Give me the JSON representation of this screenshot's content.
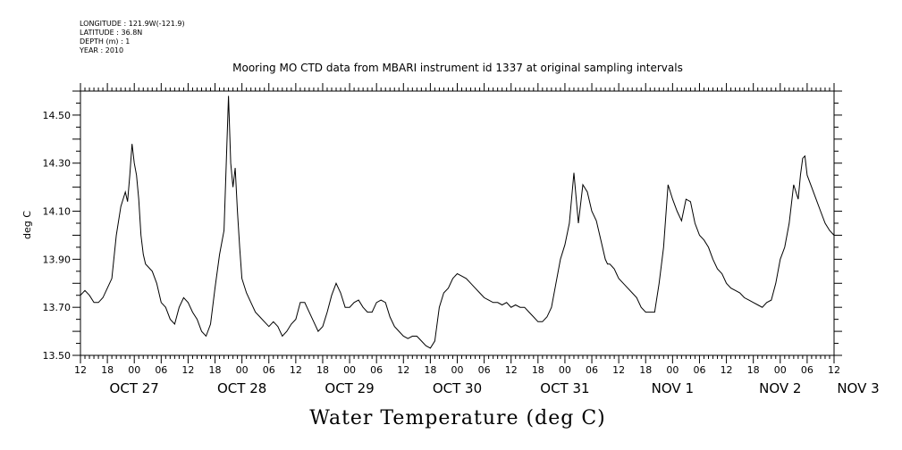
{
  "header": {
    "longitude": "LONGITUDE : 121.9W(-121.9)",
    "latitude": "LATITUDE : 36.8N",
    "depth": "DEPTH (m) : 1",
    "year": "YEAR : 2010"
  },
  "chart_data": {
    "type": "line",
    "title": "Mooring MO CTD data from MBARI instrument id 1337 at original sampling intervals",
    "xlabel": "Water Temperature (deg C)",
    "ylabel": "deg C",
    "ylim": [
      13.5,
      14.6
    ],
    "xlim_hours": [
      -12,
      156
    ],
    "y_ticks": [
      "13.50",
      "13.70",
      "13.90",
      "14.10",
      "14.30",
      "14.50"
    ],
    "y_tick_values": [
      13.5,
      13.7,
      13.9,
      14.1,
      14.3,
      14.5
    ],
    "hour_ticks": [
      "12",
      "18",
      "00",
      "06",
      "12",
      "18",
      "00",
      "06",
      "12",
      "18",
      "00",
      "06",
      "12",
      "18",
      "00",
      "06",
      "12",
      "18",
      "00",
      "06",
      "12",
      "18",
      "00",
      "06",
      "12",
      "18",
      "00",
      "06",
      "12"
    ],
    "date_labels": [
      {
        "text": "OCT 27",
        "hour": 0
      },
      {
        "text": "OCT 28",
        "hour": 24
      },
      {
        "text": "OCT 29",
        "hour": 48
      },
      {
        "text": "OCT 30",
        "hour": 72
      },
      {
        "text": "OCT 31",
        "hour": 96
      },
      {
        "text": "NOV  1",
        "hour": 120
      },
      {
        "text": "NOV  2",
        "hour": 144
      },
      {
        "text": "NOV  3",
        "hour": 168
      }
    ],
    "grid": false,
    "series": [
      {
        "color": "#000000",
        "x": [
          -12,
          -11,
          -10,
          -9,
          -8,
          -7,
          -6,
          -5,
          -4,
          -3,
          -2,
          -1.5,
          -1,
          -0.5,
          0,
          0.5,
          1,
          1.5,
          2,
          2.5,
          3,
          3.5,
          4,
          5,
          6,
          7,
          8,
          9,
          10,
          11,
          12,
          13,
          14,
          15,
          16,
          17,
          18,
          19,
          20,
          20.5,
          21,
          21.5,
          22,
          22.5,
          23,
          23.5,
          24,
          25,
          26,
          27,
          28,
          29,
          30,
          31,
          32,
          33,
          34,
          35,
          36,
          37,
          38,
          39,
          40,
          41,
          42,
          43,
          44,
          45,
          46,
          47,
          48,
          49,
          50,
          51,
          52,
          53,
          54,
          55,
          56,
          57,
          58,
          59,
          60,
          61,
          62,
          63,
          64,
          65,
          66,
          67,
          68,
          69,
          70,
          71,
          72,
          73,
          74,
          75,
          76,
          77,
          78,
          79,
          80,
          81,
          82,
          83,
          84,
          85,
          86,
          87,
          88,
          89,
          90,
          91,
          92,
          93,
          94,
          95,
          96,
          97,
          98,
          99,
          100,
          101,
          102,
          103,
          104,
          105,
          105.5,
          106,
          106.5,
          107,
          107.5,
          108,
          109,
          110,
          111,
          112,
          113,
          114,
          115,
          116,
          117,
          118,
          119,
          120,
          121,
          122,
          123,
          124,
          125,
          126,
          127,
          128,
          129,
          130,
          131,
          132,
          133,
          134,
          135,
          136,
          137,
          138,
          139,
          140,
          141,
          142,
          143,
          144,
          145,
          146,
          147,
          148,
          148.5,
          149,
          149.5,
          150,
          151,
          152,
          153,
          154,
          155,
          156
        ],
        "y": [
          13.75,
          13.77,
          13.75,
          13.72,
          13.72,
          13.74,
          13.78,
          13.82,
          14.0,
          14.12,
          14.18,
          14.14,
          14.25,
          14.38,
          14.3,
          14.25,
          14.15,
          14.0,
          13.92,
          13.88,
          13.87,
          13.86,
          13.85,
          13.8,
          13.72,
          13.7,
          13.65,
          13.63,
          13.7,
          13.74,
          13.72,
          13.68,
          13.65,
          13.6,
          13.58,
          13.63,
          13.78,
          13.92,
          14.02,
          14.3,
          14.58,
          14.3,
          14.2,
          14.28,
          14.1,
          13.95,
          13.82,
          13.76,
          13.72,
          13.68,
          13.66,
          13.64,
          13.62,
          13.64,
          13.62,
          13.58,
          13.6,
          13.63,
          13.65,
          13.72,
          13.72,
          13.68,
          13.64,
          13.6,
          13.62,
          13.68,
          13.75,
          13.8,
          13.76,
          13.7,
          13.7,
          13.72,
          13.73,
          13.7,
          13.68,
          13.68,
          13.72,
          13.73,
          13.72,
          13.66,
          13.62,
          13.6,
          13.58,
          13.57,
          13.58,
          13.58,
          13.56,
          13.54,
          13.53,
          13.56,
          13.7,
          13.76,
          13.78,
          13.82,
          13.84,
          13.83,
          13.82,
          13.8,
          13.78,
          13.76,
          13.74,
          13.73,
          13.72,
          13.72,
          13.71,
          13.72,
          13.7,
          13.71,
          13.7,
          13.7,
          13.68,
          13.66,
          13.64,
          13.64,
          13.66,
          13.7,
          13.8,
          13.9,
          13.96,
          14.05,
          14.26,
          14.05,
          14.21,
          14.18,
          14.1,
          14.06,
          13.98,
          13.9,
          13.88,
          13.88,
          13.87,
          13.86,
          13.84,
          13.82,
          13.8,
          13.78,
          13.76,
          13.74,
          13.7,
          13.68,
          13.68,
          13.68,
          13.8,
          13.95,
          14.21,
          14.15,
          14.1,
          14.06,
          14.15,
          14.14,
          14.05,
          14.0,
          13.98,
          13.95,
          13.9,
          13.86,
          13.84,
          13.8,
          13.78,
          13.77,
          13.76,
          13.74,
          13.73,
          13.72,
          13.71,
          13.7,
          13.72,
          13.73,
          13.8,
          13.9,
          13.95,
          14.05,
          14.21,
          14.15,
          14.25,
          14.32,
          14.33,
          14.25,
          14.2,
          14.15,
          14.1,
          14.05,
          14.02,
          14.0
        ]
      }
    ]
  }
}
